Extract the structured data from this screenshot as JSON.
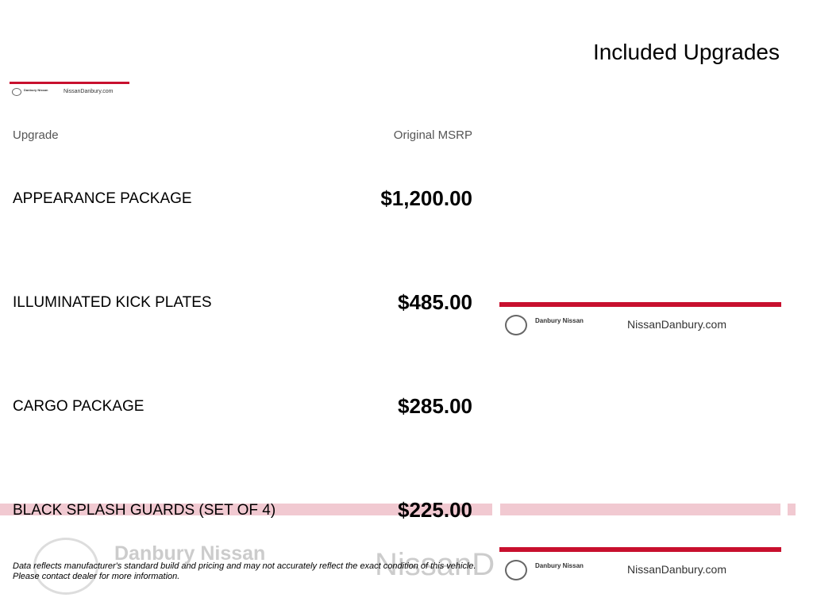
{
  "title": "Included Upgrades",
  "columns": {
    "upgrade": "Upgrade",
    "msrp": "Original MSRP"
  },
  "rows": [
    {
      "name": "APPEARANCE PACKAGE",
      "price": "$1,200.00"
    },
    {
      "name": "ILLUMINATED KICK PLATES",
      "price": "$485.00"
    },
    {
      "name": "CARGO PACKAGE",
      "price": "$285.00"
    },
    {
      "name": "BLACK SPLASH GUARDS (SET OF 4)",
      "price": "$225.00"
    }
  ],
  "logo": {
    "dealer": "Danbury Nissan",
    "url": "NissanDanbury.com",
    "watermark_url": "NissanD",
    "brand": "NISSAN"
  },
  "disclaimer": {
    "line1": "Data reflects manufacturer's standard build and pricing and may not accurately reflect the exact condition of this vehicle.",
    "line2": "Please contact dealer for more information."
  },
  "colors": {
    "accent": "#c8102e",
    "band": "#f1c9d1"
  }
}
